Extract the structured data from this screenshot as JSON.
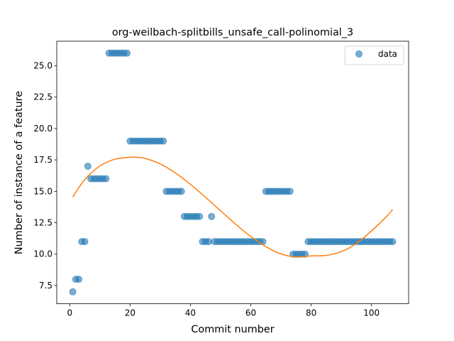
{
  "chart_data": {
    "type": "scatter",
    "title": "org-weilbach-splitbills_unsafe_call-polinomial_3",
    "xlabel": "Commit number",
    "ylabel": "Number of instance of a feature",
    "xlim": [
      -4.3,
      112.3
    ],
    "ylim": [
      6.05,
      26.95
    ],
    "xticks": [
      0,
      20,
      40,
      60,
      80,
      100
    ],
    "yticks": [
      7.5,
      10.0,
      12.5,
      15.0,
      17.5,
      20.0,
      22.5,
      25.0
    ],
    "ytick_labels": [
      "7.5",
      "10.0",
      "12.5",
      "15.0",
      "17.5",
      "20.0",
      "22.5",
      "25.0"
    ],
    "legend": {
      "position": "top-right",
      "entries": [
        "data"
      ]
    },
    "grid": false,
    "series": [
      {
        "name": "data",
        "kind": "scatter",
        "color": "#1f77b4",
        "x": [
          1,
          2,
          3,
          4,
          5,
          6,
          7,
          8,
          9,
          10,
          11,
          12,
          13,
          14,
          15,
          16,
          17,
          18,
          19,
          20,
          21,
          22,
          23,
          24,
          25,
          26,
          27,
          28,
          29,
          30,
          31,
          32,
          33,
          34,
          35,
          36,
          37,
          38,
          39,
          40,
          41,
          42,
          43,
          44,
          45,
          46,
          47,
          48,
          49,
          50,
          51,
          52,
          53,
          54,
          55,
          56,
          57,
          58,
          59,
          60,
          61,
          62,
          63,
          64,
          65,
          66,
          67,
          68,
          69,
          70,
          71,
          72,
          73,
          74,
          75,
          76,
          77,
          78,
          79,
          80,
          81,
          82,
          83,
          84,
          85,
          86,
          87,
          88,
          89,
          90,
          91,
          92,
          93,
          94,
          95,
          96,
          97,
          98,
          99,
          100,
          101,
          102,
          103,
          104,
          105,
          106,
          107
        ],
        "y": [
          7,
          8,
          8,
          11,
          11,
          17,
          16,
          16,
          16,
          16,
          16,
          16,
          26,
          26,
          26,
          26,
          26,
          26,
          26,
          19,
          19,
          19,
          19,
          19,
          19,
          19,
          19,
          19,
          19,
          19,
          19,
          15,
          15,
          15,
          15,
          15,
          15,
          13,
          13,
          13,
          13,
          13,
          13,
          11,
          11,
          11,
          13,
          11,
          11,
          11,
          11,
          11,
          11,
          11,
          11,
          11,
          11,
          11,
          11,
          11,
          11,
          11,
          11,
          11,
          15,
          15,
          15,
          15,
          15,
          15,
          15,
          15,
          15,
          10,
          10,
          10,
          10,
          10,
          11,
          11,
          11,
          11,
          11,
          11,
          11,
          11,
          11,
          11,
          11,
          11,
          11,
          11,
          11,
          11,
          11,
          11,
          11,
          11,
          11,
          11,
          11,
          11,
          11,
          11,
          11,
          11,
          11
        ]
      },
      {
        "name": "",
        "kind": "line",
        "color": "#ff7f0e",
        "x": [
          1,
          5,
          10,
          15,
          20,
          22,
          25,
          30,
          35,
          40,
          45,
          50,
          55,
          60,
          65,
          70,
          75,
          80,
          85,
          90,
          95,
          100,
          105,
          107
        ],
        "y": [
          14.55,
          15.94,
          17.02,
          17.56,
          17.71,
          17.72,
          17.62,
          17.18,
          16.47,
          15.56,
          14.53,
          13.45,
          12.38,
          11.41,
          10.6,
          10.02,
          9.77,
          9.86,
          9.9,
          10.2,
          10.85,
          11.85,
          13.0,
          13.55
        ]
      }
    ]
  }
}
